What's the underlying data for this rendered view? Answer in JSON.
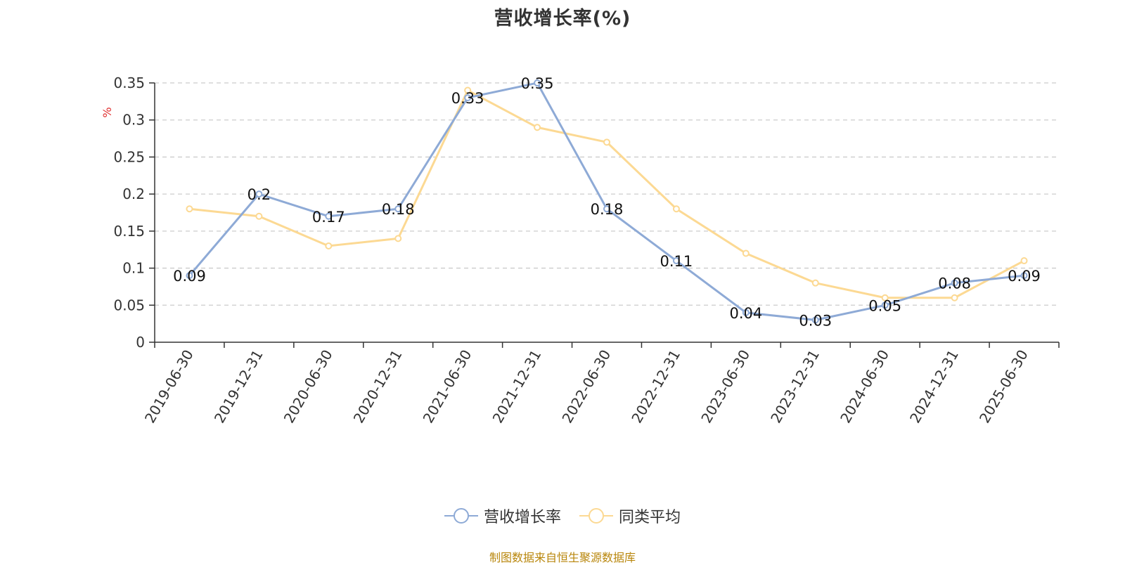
{
  "chart_data": {
    "type": "line",
    "title": "营收增长率(%)",
    "ylabel": "%",
    "xlabel": "",
    "ylim": [
      0,
      0.35
    ],
    "y_ticks": [
      0,
      0.05,
      0.1,
      0.15,
      0.2,
      0.25,
      0.3,
      0.35
    ],
    "categories": [
      "2019-06-30",
      "2019-12-31",
      "2020-06-30",
      "2020-12-31",
      "2021-06-30",
      "2021-12-31",
      "2022-06-30",
      "2022-12-31",
      "2023-06-30",
      "2023-12-31",
      "2024-06-30",
      "2024-12-31",
      "2025-06-30"
    ],
    "grid": true,
    "legend_position": "bottom",
    "series": [
      {
        "name": "营收增长率",
        "color": "#8eaad6",
        "values": [
          0.09,
          0.2,
          0.17,
          0.18,
          0.33,
          0.35,
          0.18,
          0.11,
          0.04,
          0.03,
          0.05,
          0.08,
          0.09
        ],
        "show_labels": true
      },
      {
        "name": "同类平均",
        "color": "#fcd993",
        "values": [
          0.18,
          0.17,
          0.13,
          0.14,
          0.34,
          0.29,
          0.27,
          0.18,
          0.12,
          0.08,
          0.06,
          0.06,
          0.11
        ],
        "show_labels": false
      }
    ]
  },
  "footer": {
    "source": "制图数据来自恒生聚源数据库"
  },
  "colors": {
    "axis": "#333333",
    "grid": "#cccccc",
    "ylabel": "#e03030",
    "source": "#b8860b"
  }
}
